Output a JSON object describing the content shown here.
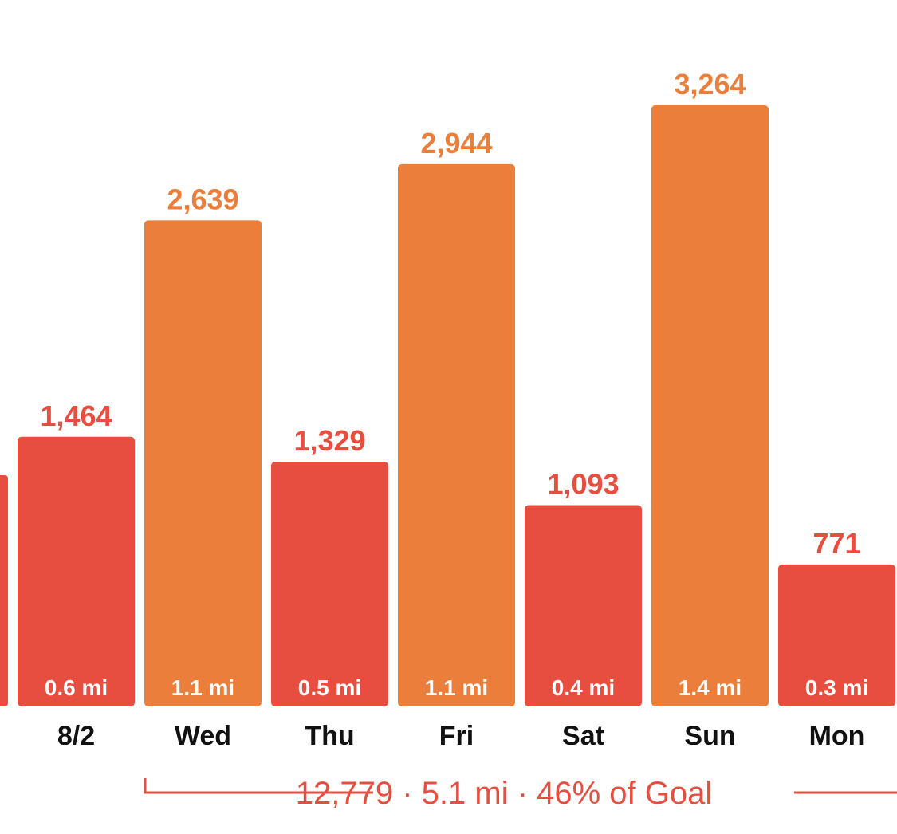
{
  "chart_data": {
    "type": "bar",
    "title": "",
    "xlabel": "",
    "ylabel": "",
    "ylim": [
      0,
      3500
    ],
    "categories": [
      "",
      "8/2",
      "Wed",
      "Thu",
      "Fri",
      "Sat",
      "Sun",
      "Mon"
    ],
    "values": [
      null,
      1464,
      2639,
      1329,
      2944,
      1093,
      3264,
      771
    ],
    "value_labels": [
      "",
      "1,464",
      "2,639",
      "1,329",
      "2,944",
      "1,093",
      "3,264",
      "771"
    ],
    "distances": [
      "",
      "0.6 mi",
      "1.1 mi",
      "0.5 mi",
      "1.1 mi",
      "0.4 mi",
      "1.4 mi",
      "0.3 mi"
    ],
    "goal_met": [
      false,
      false,
      true,
      false,
      true,
      false,
      true,
      false
    ],
    "partial_bar_visible": true,
    "summary": {
      "text": "12,779 · 5.1 mi · 46% of Goal",
      "spans_categories": [
        "Wed",
        "Mon"
      ]
    }
  },
  "colors": {
    "below_goal": "#E84E3F",
    "above_goal": "#EA7E3A",
    "label_text": "#111111",
    "bar_text": "#ffffff"
  }
}
